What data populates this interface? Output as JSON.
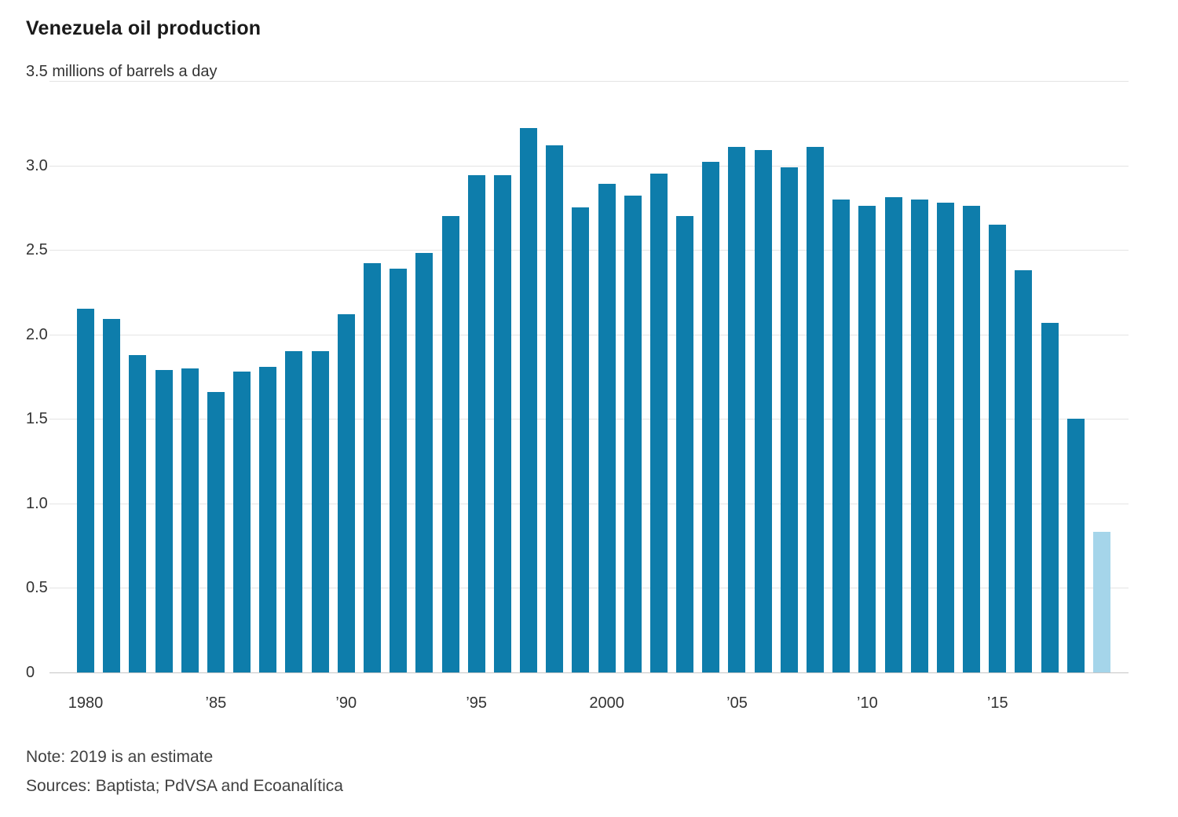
{
  "header": {
    "title": "Venezuela oil production"
  },
  "footer": {
    "note": "Note: 2019 is an estimate",
    "sources": "Sources: Baptista; PdVSA and Ecoanalítica"
  },
  "chart_data": {
    "type": "bar",
    "title": "Venezuela oil production",
    "unit_label": "3.5 millions of barrels a day",
    "ylabel": "millions of barrels a day",
    "ylim": [
      0,
      3.5
    ],
    "grid": true,
    "legend": "none",
    "estimate_year": 2019,
    "years": [
      1980,
      1981,
      1982,
      1983,
      1984,
      1985,
      1986,
      1987,
      1988,
      1989,
      1990,
      1991,
      1992,
      1993,
      1994,
      1995,
      1996,
      1997,
      1998,
      1999,
      2000,
      2001,
      2002,
      2003,
      2004,
      2005,
      2006,
      2007,
      2008,
      2009,
      2010,
      2011,
      2012,
      2013,
      2014,
      2015,
      2016,
      2017,
      2018,
      2019
    ],
    "values": [
      2.15,
      2.09,
      1.88,
      1.79,
      1.8,
      1.66,
      1.78,
      1.81,
      1.9,
      1.9,
      2.12,
      2.42,
      2.39,
      2.48,
      2.7,
      2.94,
      2.94,
      3.22,
      3.12,
      2.75,
      2.89,
      2.82,
      2.95,
      2.7,
      3.02,
      3.11,
      3.09,
      2.99,
      3.11,
      2.8,
      2.76,
      2.81,
      2.8,
      2.78,
      2.76,
      2.65,
      2.38,
      2.07,
      1.5,
      0.83
    ],
    "yticks": [
      {
        "value": 0,
        "label": "0"
      },
      {
        "value": 0.5,
        "label": "0.5"
      },
      {
        "value": 1.0,
        "label": "1.0"
      },
      {
        "value": 1.5,
        "label": "1.5"
      },
      {
        "value": 2.0,
        "label": "2.0"
      },
      {
        "value": 2.5,
        "label": "2.5"
      },
      {
        "value": 3.0,
        "label": "3.0"
      },
      {
        "value": 3.5,
        "label": ""
      }
    ],
    "xticks": [
      {
        "index": 0,
        "label": "1980"
      },
      {
        "index": 5,
        "label": "’85"
      },
      {
        "index": 10,
        "label": "’90"
      },
      {
        "index": 15,
        "label": "’95"
      },
      {
        "index": 20,
        "label": "2000"
      },
      {
        "index": 25,
        "label": "’05"
      },
      {
        "index": 30,
        "label": "’10"
      },
      {
        "index": 35,
        "label": "’15"
      }
    ],
    "colors": {
      "bar": "#0e7dab",
      "estimate": "#a5d5ea",
      "gridline": "#e4e4e4"
    }
  }
}
